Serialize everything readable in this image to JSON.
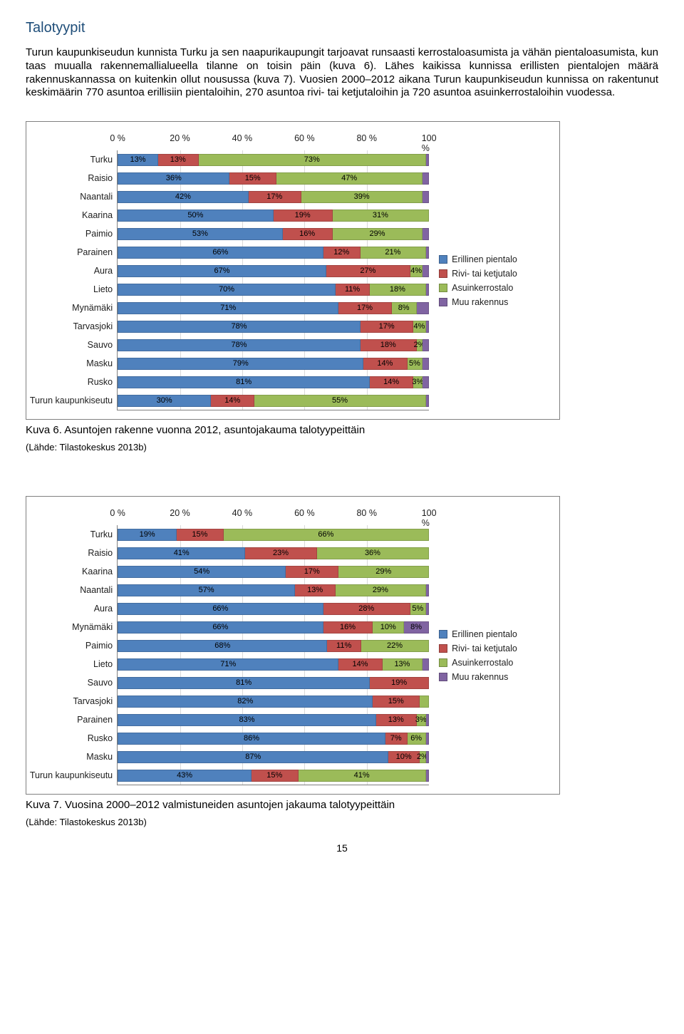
{
  "heading": "Talotyypit",
  "paragraph": "Turun kaupunkiseudun kunnista Turku ja sen naapurikaupungit tarjoavat runsaasti kerrostaloasumista ja vähän pientaloasumista, kun taas muualla rakennemallialueella tilanne on toisin päin (kuva 6). Lähes kaikissa kunnissa erillisten pientalojen määrä rakennuskannassa on kuitenkin ollut nousussa (kuva 7). Vuosien 2000–2012 aikana Turun kaupunkiseudun kunnissa on rakentunut keskimäärin 770 asuntoa erillisiin pientaloihin, 270 asuntoa rivi- tai ketjutaloihin ja 720 asuntoa asuinkerrostaloihin vuodessa.",
  "colors": {
    "s1": "#4f81bd",
    "s2": "#c0504d",
    "s3": "#9bbb59",
    "s4": "#8064a2"
  },
  "legend": [
    "Erillinen pientalo",
    "Rivi- tai ketjutalo",
    "Asuinkerrostalo",
    "Muu rakennus"
  ],
  "axis_ticks": [
    "0 %",
    "20 %",
    "40 %",
    "60 %",
    "80 %",
    "100 %"
  ],
  "chart1": {
    "rows": [
      {
        "label": "Turku",
        "segs": [
          {
            "v": 13,
            "lbl": "13%"
          },
          {
            "v": 13,
            "lbl": "13%"
          },
          {
            "v": 73,
            "lbl": "73%"
          },
          {
            "v": 1,
            "lbl": ""
          }
        ]
      },
      {
        "label": "Raisio",
        "segs": [
          {
            "v": 36,
            "lbl": "36%"
          },
          {
            "v": 15,
            "lbl": "15%"
          },
          {
            "v": 47,
            "lbl": "47%"
          },
          {
            "v": 2,
            "lbl": ""
          }
        ]
      },
      {
        "label": "Naantali",
        "segs": [
          {
            "v": 42,
            "lbl": "42%"
          },
          {
            "v": 17,
            "lbl": "17%"
          },
          {
            "v": 39,
            "lbl": "39%"
          },
          {
            "v": 2,
            "lbl": ""
          }
        ]
      },
      {
        "label": "Kaarina",
        "segs": [
          {
            "v": 50,
            "lbl": "50%"
          },
          {
            "v": 19,
            "lbl": "19%"
          },
          {
            "v": 31,
            "lbl": "31%"
          },
          {
            "v": 0,
            "lbl": ""
          }
        ]
      },
      {
        "label": "Paimio",
        "segs": [
          {
            "v": 53,
            "lbl": "53%"
          },
          {
            "v": 16,
            "lbl": "16%"
          },
          {
            "v": 29,
            "lbl": "29%"
          },
          {
            "v": 2,
            "lbl": ""
          }
        ]
      },
      {
        "label": "Parainen",
        "segs": [
          {
            "v": 66,
            "lbl": "66%"
          },
          {
            "v": 12,
            "lbl": "12%"
          },
          {
            "v": 21,
            "lbl": "21%"
          },
          {
            "v": 1,
            "lbl": ""
          }
        ]
      },
      {
        "label": "Aura",
        "segs": [
          {
            "v": 67,
            "lbl": "67%"
          },
          {
            "v": 27,
            "lbl": "27%"
          },
          {
            "v": 4,
            "lbl": "4%"
          },
          {
            "v": 2,
            "lbl": ""
          }
        ]
      },
      {
        "label": "Lieto",
        "segs": [
          {
            "v": 70,
            "lbl": "70%"
          },
          {
            "v": 11,
            "lbl": "11%"
          },
          {
            "v": 18,
            "lbl": "18%"
          },
          {
            "v": 1,
            "lbl": ""
          }
        ]
      },
      {
        "label": "Mynämäki",
        "segs": [
          {
            "v": 71,
            "lbl": "71%"
          },
          {
            "v": 17,
            "lbl": "17%"
          },
          {
            "v": 8,
            "lbl": "8%"
          },
          {
            "v": 4,
            "lbl": ""
          }
        ]
      },
      {
        "label": "Tarvasjoki",
        "segs": [
          {
            "v": 78,
            "lbl": "78%"
          },
          {
            "v": 17,
            "lbl": "17%"
          },
          {
            "v": 4,
            "lbl": "4%"
          },
          {
            "v": 1,
            "lbl": ""
          }
        ]
      },
      {
        "label": "Sauvo",
        "segs": [
          {
            "v": 78,
            "lbl": "78%"
          },
          {
            "v": 18,
            "lbl": "18%"
          },
          {
            "v": 2,
            "lbl": "2%"
          },
          {
            "v": 2,
            "lbl": ""
          }
        ]
      },
      {
        "label": "Masku",
        "segs": [
          {
            "v": 79,
            "lbl": "79%"
          },
          {
            "v": 14,
            "lbl": "14%"
          },
          {
            "v": 5,
            "lbl": "5%"
          },
          {
            "v": 2,
            "lbl": ""
          }
        ]
      },
      {
        "label": "Rusko",
        "segs": [
          {
            "v": 81,
            "lbl": "81%"
          },
          {
            "v": 14,
            "lbl": "14%"
          },
          {
            "v": 3,
            "lbl": "3%"
          },
          {
            "v": 2,
            "lbl": ""
          }
        ]
      },
      {
        "label": "Turun kaupunkiseutu",
        "segs": [
          {
            "v": 30,
            "lbl": "30%"
          },
          {
            "v": 14,
            "lbl": "14%"
          },
          {
            "v": 55,
            "lbl": "55%"
          },
          {
            "v": 1,
            "lbl": ""
          }
        ]
      }
    ]
  },
  "caption1_a": "Kuva 6. Asuntojen rakenne vuonna 2012, asuntojakauma talotyypeittäin",
  "caption1_b": "(Lähde: Tilastokeskus 2013b)",
  "chart2": {
    "rows": [
      {
        "label": "Turku",
        "segs": [
          {
            "v": 19,
            "lbl": "19%"
          },
          {
            "v": 15,
            "lbl": "15%"
          },
          {
            "v": 66,
            "lbl": "66%"
          },
          {
            "v": 0,
            "lbl": ""
          }
        ]
      },
      {
        "label": "Raisio",
        "segs": [
          {
            "v": 41,
            "lbl": "41%"
          },
          {
            "v": 23,
            "lbl": "23%"
          },
          {
            "v": 36,
            "lbl": "36%"
          },
          {
            "v": 0,
            "lbl": ""
          }
        ]
      },
      {
        "label": "Kaarina",
        "segs": [
          {
            "v": 54,
            "lbl": "54%"
          },
          {
            "v": 17,
            "lbl": "17%"
          },
          {
            "v": 29,
            "lbl": "29%"
          },
          {
            "v": 0,
            "lbl": ""
          }
        ]
      },
      {
        "label": "Naantali",
        "segs": [
          {
            "v": 57,
            "lbl": "57%"
          },
          {
            "v": 13,
            "lbl": "13%"
          },
          {
            "v": 29,
            "lbl": "29%"
          },
          {
            "v": 1,
            "lbl": ""
          }
        ]
      },
      {
        "label": "Aura",
        "segs": [
          {
            "v": 66,
            "lbl": "66%"
          },
          {
            "v": 28,
            "lbl": "28%"
          },
          {
            "v": 5,
            "lbl": "5%"
          },
          {
            "v": 1,
            "lbl": ""
          }
        ]
      },
      {
        "label": "Mynämäki",
        "segs": [
          {
            "v": 66,
            "lbl": "66%"
          },
          {
            "v": 16,
            "lbl": "16%"
          },
          {
            "v": 10,
            "lbl": "10%"
          },
          {
            "v": 8,
            "lbl": "8%"
          }
        ]
      },
      {
        "label": "Paimio",
        "segs": [
          {
            "v": 68,
            "lbl": "68%"
          },
          {
            "v": 11,
            "lbl": "11%"
          },
          {
            "v": 22,
            "lbl": "22%"
          },
          {
            "v": 0,
            "lbl": ""
          }
        ]
      },
      {
        "label": "Lieto",
        "segs": [
          {
            "v": 71,
            "lbl": "71%"
          },
          {
            "v": 14,
            "lbl": "14%"
          },
          {
            "v": 13,
            "lbl": "13%"
          },
          {
            "v": 2,
            "lbl": ""
          }
        ]
      },
      {
        "label": "Sauvo",
        "segs": [
          {
            "v": 81,
            "lbl": "81%"
          },
          {
            "v": 19,
            "lbl": "19%"
          },
          {
            "v": 0,
            "lbl": ""
          },
          {
            "v": 0,
            "lbl": ""
          }
        ]
      },
      {
        "label": "Tarvasjoki",
        "segs": [
          {
            "v": 82,
            "lbl": "82%"
          },
          {
            "v": 15,
            "lbl": "15%"
          },
          {
            "v": 3,
            "lbl": ""
          },
          {
            "v": 0,
            "lbl": ""
          }
        ]
      },
      {
        "label": "Parainen",
        "segs": [
          {
            "v": 83,
            "lbl": "83%"
          },
          {
            "v": 13,
            "lbl": "13%"
          },
          {
            "v": 3,
            "lbl": "3%"
          },
          {
            "v": 1,
            "lbl": ""
          }
        ]
      },
      {
        "label": "Rusko",
        "segs": [
          {
            "v": 86,
            "lbl": "86%"
          },
          {
            "v": 7,
            "lbl": "7%"
          },
          {
            "v": 6,
            "lbl": "6%"
          },
          {
            "v": 1,
            "lbl": ""
          }
        ]
      },
      {
        "label": "Masku",
        "segs": [
          {
            "v": 87,
            "lbl": "87%"
          },
          {
            "v": 10,
            "lbl": "10%"
          },
          {
            "v": 2,
            "lbl": "2%"
          },
          {
            "v": 1,
            "lbl": ""
          }
        ]
      },
      {
        "label": "Turun kaupunkiseutu",
        "segs": [
          {
            "v": 43,
            "lbl": "43%"
          },
          {
            "v": 15,
            "lbl": "15%"
          },
          {
            "v": 41,
            "lbl": "41%"
          },
          {
            "v": 1,
            "lbl": ""
          }
        ]
      }
    ]
  },
  "caption2_a": "Kuva 7. Vuosina 2000–2012 valmistuneiden asuntojen jakauma talotyypeittäin",
  "caption2_b": "(Lähde: Tilastokeskus 2013b)",
  "page_number": "15"
}
